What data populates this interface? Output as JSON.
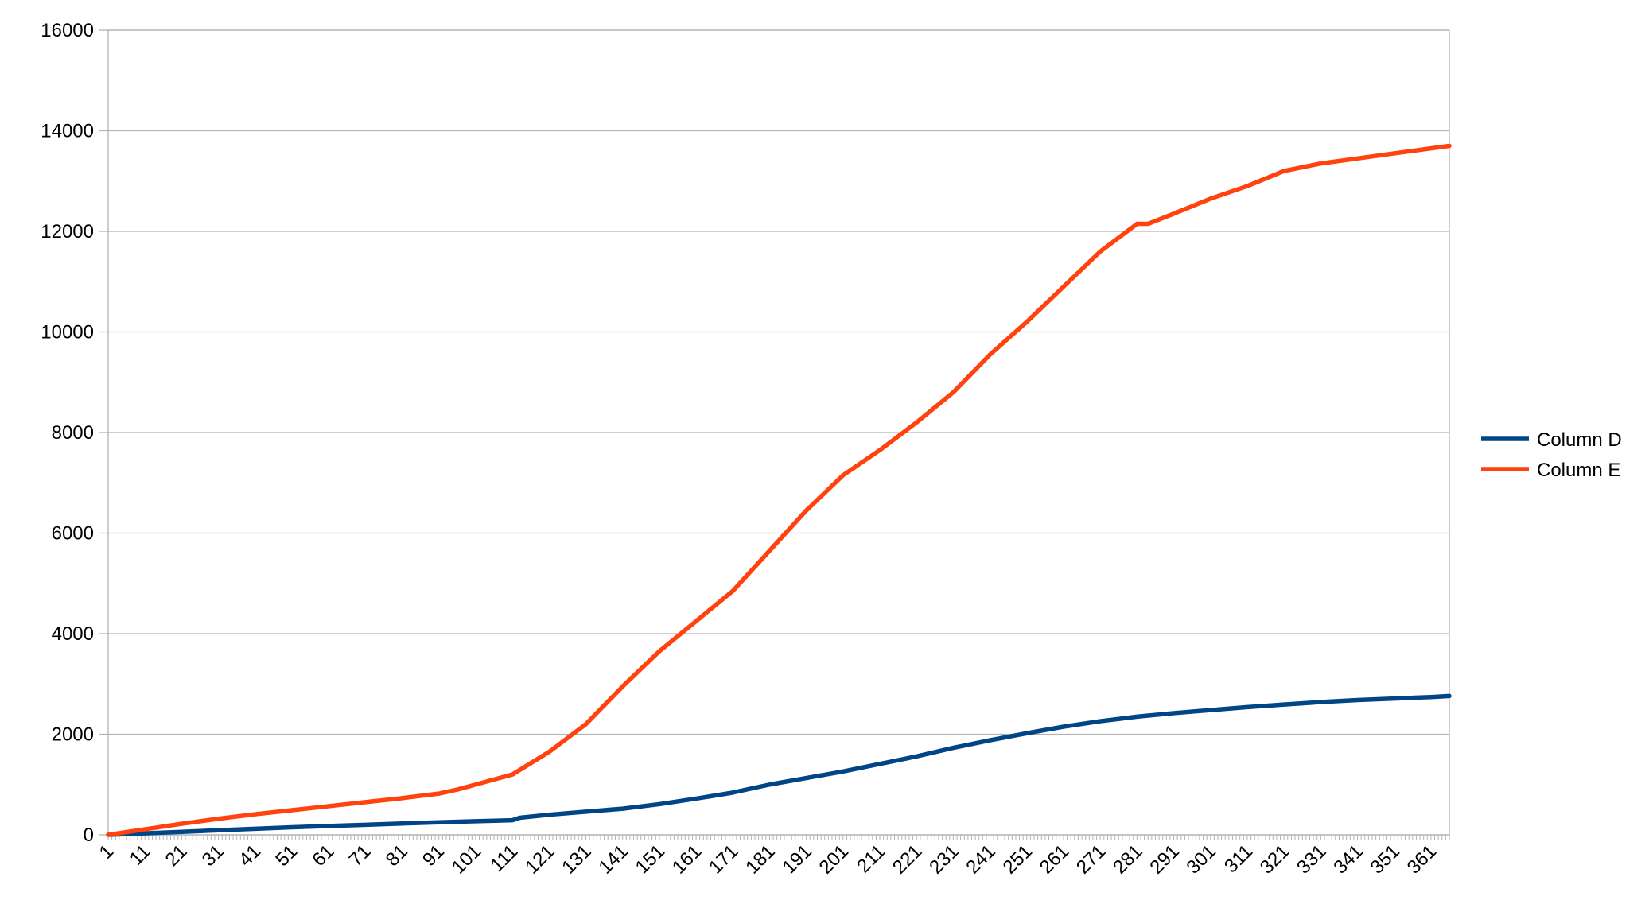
{
  "chart_data": {
    "type": "line",
    "title": "",
    "xlabel": "",
    "ylabel": "",
    "x_start": 1,
    "x_end": 366,
    "x_tick_labels": [
      "1",
      "11",
      "21",
      "31",
      "41",
      "51",
      "61",
      "71",
      "81",
      "91",
      "101",
      "111",
      "121",
      "131",
      "141",
      "151",
      "161",
      "171",
      "181",
      "191",
      "201",
      "211",
      "221",
      "231",
      "241",
      "251",
      "261",
      "271",
      "281",
      "291",
      "301",
      "311",
      "321",
      "331",
      "341",
      "351",
      "361"
    ],
    "y_tick_labels": [
      "0",
      "2000",
      "4000",
      "6000",
      "8000",
      "10000",
      "12000",
      "14000",
      "16000"
    ],
    "ylim": [
      0,
      16000
    ],
    "grid": "horizontal",
    "legend_position": "right",
    "series": [
      {
        "name": "Column D",
        "color": "#004586",
        "x": [
          1,
          11,
          21,
          31,
          41,
          51,
          61,
          71,
          81,
          91,
          101,
          111,
          113,
          121,
          131,
          141,
          151,
          161,
          171,
          181,
          191,
          201,
          211,
          221,
          231,
          241,
          251,
          261,
          271,
          281,
          291,
          301,
          311,
          321,
          331,
          341,
          351,
          361,
          366
        ],
        "values": [
          0,
          30,
          60,
          90,
          120,
          150,
          175,
          200,
          225,
          250,
          270,
          290,
          340,
          400,
          460,
          520,
          610,
          720,
          840,
          1000,
          1130,
          1260,
          1410,
          1560,
          1730,
          1880,
          2020,
          2150,
          2260,
          2350,
          2420,
          2480,
          2540,
          2590,
          2640,
          2680,
          2710,
          2740,
          2760
        ]
      },
      {
        "name": "Column E",
        "color": "#ff420e",
        "x": [
          1,
          11,
          21,
          31,
          41,
          51,
          61,
          71,
          81,
          91,
          96,
          101,
          111,
          121,
          131,
          141,
          151,
          161,
          171,
          181,
          191,
          201,
          211,
          221,
          231,
          241,
          251,
          261,
          271,
          281,
          284,
          291,
          301,
          311,
          321,
          331,
          341,
          351,
          361,
          366
        ],
        "values": [
          0,
          110,
          220,
          320,
          410,
          490,
          570,
          650,
          730,
          820,
          900,
          1000,
          1200,
          1650,
          2200,
          2950,
          3650,
          4250,
          4850,
          5650,
          6450,
          7150,
          7650,
          8200,
          8800,
          9550,
          10200,
          10900,
          11600,
          12150,
          12150,
          12350,
          12650,
          12900,
          13200,
          13350,
          13450,
          13550,
          13650,
          13700
        ]
      }
    ]
  }
}
